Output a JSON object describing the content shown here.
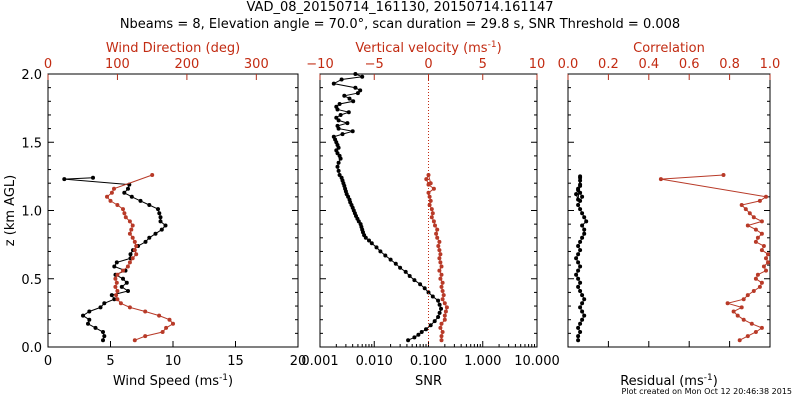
{
  "header": {
    "title_line1": "VAD_08_20150714_161130, 20150714.161147",
    "title_line2": "Nbeams = 8, Elevation angle = 70.0°, scan duration = 29.8 s, SNR Threshold = 0.008"
  },
  "footer": {
    "plot_created": "Plot created on Mon Oct 12 20:46:38 2015"
  },
  "colors": {
    "black_series": "#000000",
    "red_series": "#b83a28",
    "red_axis": "#c22b12"
  },
  "chart_data": [
    {
      "type": "line",
      "name": "wind",
      "ylabel": "z (km AGL)",
      "ylim": [
        0,
        2
      ],
      "yticks": [
        0,
        0.5,
        1,
        1.5,
        2
      ],
      "ytick_labels": [
        "0.0",
        "0.5",
        "1.0",
        "1.5",
        "2.0"
      ],
      "xlabel_main": "Wind Speed (ms",
      "xlabel_sup": "-1",
      "xlabel_end": ")",
      "xlim": [
        0,
        20
      ],
      "xticks": [
        0,
        5,
        10,
        15,
        20
      ],
      "xtick_labels": [
        "0",
        "5",
        "10",
        "15",
        "20"
      ],
      "top_label": "Wind Direction (deg)",
      "top_xlim": [
        0,
        360
      ],
      "top_xticks": [
        0,
        100,
        200,
        300
      ],
      "top_xtick_labels": [
        "0",
        "100",
        "200",
        "300"
      ],
      "series": [
        {
          "name": "Wind Speed",
          "color": "black",
          "axis": "bottom",
          "x": [
            4.4,
            4.5,
            4.4,
            3.8,
            3.2,
            3.3,
            2.8,
            3.3,
            4.2,
            4.5,
            5.3,
            5.1,
            6.4,
            5.9,
            6.3,
            6.0,
            5.4,
            6.2,
            5.3,
            5.5,
            6.6,
            6.6,
            6.8,
            7.2,
            7.8,
            8.1,
            8.6,
            9.1,
            9.4,
            9.0,
            9.0,
            8.9,
            8.8,
            8.1,
            7.4,
            6.7,
            6.1,
            6.4,
            6.5,
            1.3,
            3.6
          ],
          "y": [
            0.05,
            0.08,
            0.11,
            0.14,
            0.17,
            0.2,
            0.23,
            0.26,
            0.29,
            0.32,
            0.35,
            0.38,
            0.41,
            0.44,
            0.47,
            0.5,
            0.53,
            0.56,
            0.59,
            0.62,
            0.65,
            0.68,
            0.71,
            0.74,
            0.77,
            0.8,
            0.83,
            0.86,
            0.89,
            0.92,
            0.95,
            0.98,
            1.01,
            1.04,
            1.07,
            1.1,
            1.13,
            1.16,
            1.19,
            1.23,
            1.24
          ]
        },
        {
          "name": "Wind Direction",
          "color": "red",
          "axis": "top",
          "x": [
            125,
            140,
            165,
            170,
            180,
            175,
            160,
            140,
            118,
            105,
            100,
            98,
            100,
            97,
            99,
            97,
            100,
            108,
            115,
            118,
            122,
            127,
            125,
            127,
            125,
            122,
            118,
            120,
            122,
            118,
            112,
            110,
            108,
            100,
            90,
            85,
            92,
            95,
            150
          ],
          "y": [
            0.05,
            0.08,
            0.11,
            0.14,
            0.17,
            0.2,
            0.23,
            0.26,
            0.29,
            0.32,
            0.35,
            0.38,
            0.41,
            0.44,
            0.47,
            0.5,
            0.53,
            0.56,
            0.59,
            0.62,
            0.65,
            0.68,
            0.71,
            0.74,
            0.77,
            0.8,
            0.83,
            0.86,
            0.89,
            0.92,
            0.95,
            0.98,
            1.01,
            1.04,
            1.07,
            1.1,
            1.13,
            1.16,
            1.26
          ]
        }
      ]
    },
    {
      "type": "line",
      "name": "snr",
      "xscale": "log",
      "xlim": [
        0.001,
        10
      ],
      "ylim": [
        0,
        2
      ],
      "xlabel_main": "SNR",
      "xticks": [
        0.001,
        0.01,
        0.1,
        1,
        10
      ],
      "xtick_labels": [
        "0.001",
        "0.010",
        "0.100",
        "1.000",
        "10.000"
      ],
      "top_label_main": "Vertical velocity (ms",
      "top_label_sup": "-1",
      "top_label_end": ")",
      "top_xlim": [
        -10,
        10
      ],
      "top_xticks": [
        -10,
        -5,
        0,
        5,
        10
      ],
      "top_xtick_labels": [
        "−10",
        "−5",
        "0",
        "5",
        "10"
      ],
      "reference_line_top_x": 0,
      "series": [
        {
          "name": "SNR",
          "color": "black",
          "axis": "bottom",
          "x": [
            0.042,
            0.055,
            0.065,
            0.075,
            0.09,
            0.11,
            0.13,
            0.15,
            0.16,
            0.17,
            0.16,
            0.15,
            0.12,
            0.1,
            0.085,
            0.07,
            0.055,
            0.045,
            0.038,
            0.03,
            0.025,
            0.02,
            0.016,
            0.013,
            0.011,
            0.009,
            0.008,
            0.007,
            0.0065,
            0.0062,
            0.006,
            0.0058,
            0.0056,
            0.0052,
            0.0049,
            0.0046,
            0.0044,
            0.0042,
            0.004,
            0.0038,
            0.0036,
            0.0035,
            0.0033,
            0.0031,
            0.003,
            0.0029,
            0.0028,
            0.0027,
            0.0026,
            0.0025,
            0.0023,
            0.0022,
            0.0021,
            0.0022,
            0.0024,
            0.0023,
            0.0021,
            0.002,
            0.0022,
            0.0021,
            0.002,
            0.0019,
            0.0018,
            0.0026,
            0.004,
            0.0022,
            0.0021,
            0.0032,
            0.0022,
            0.002,
            0.0024,
            0.0034,
            0.0021,
            0.002,
            0.0023,
            0.0041,
            0.0035,
            0.0028,
            0.005,
            0.0055,
            0.0045,
            0.0018,
            0.0025,
            0.006,
            0.0045
          ],
          "y": [
            0.05,
            0.07,
            0.09,
            0.11,
            0.13,
            0.16,
            0.19,
            0.22,
            0.25,
            0.28,
            0.31,
            0.34,
            0.37,
            0.4,
            0.43,
            0.46,
            0.49,
            0.52,
            0.55,
            0.58,
            0.61,
            0.64,
            0.67,
            0.7,
            0.73,
            0.76,
            0.78,
            0.8,
            0.82,
            0.84,
            0.86,
            0.88,
            0.9,
            0.92,
            0.94,
            0.96,
            0.98,
            1.0,
            1.02,
            1.04,
            1.06,
            1.08,
            1.1,
            1.12,
            1.14,
            1.16,
            1.18,
            1.2,
            1.22,
            1.24,
            1.26,
            1.29,
            1.32,
            1.35,
            1.38,
            1.4,
            1.42,
            1.44,
            1.46,
            1.48,
            1.5,
            1.52,
            1.54,
            1.56,
            1.58,
            1.6,
            1.62,
            1.64,
            1.66,
            1.68,
            1.7,
            1.72,
            1.74,
            1.76,
            1.78,
            1.8,
            1.82,
            1.84,
            1.86,
            1.88,
            1.9,
            1.93,
            1.96,
            1.98,
            2.0
          ]
        },
        {
          "name": "Vertical velocity",
          "color": "red",
          "axis": "top",
          "x": [
            1.2,
            1.2,
            1.3,
            1.1,
            1.2,
            1.5,
            1.5,
            1.6,
            1.7,
            1.5,
            1.3,
            1.4,
            1.3,
            1.2,
            1.3,
            1.1,
            1.2,
            1.0,
            1.2,
            1.1,
            1.0,
            1.1,
            1.0,
            0.9,
            1.0,
            0.8,
            0.7,
            0.8,
            0.6,
            0.5,
            0.3,
            0.4,
            0.3,
            0.1,
            0.2,
            0.1,
            0.0,
            0.5,
            0.0,
            -0.2,
            0.0,
            0.2
          ],
          "y": [
            0.05,
            0.08,
            0.11,
            0.14,
            0.17,
            0.2,
            0.23,
            0.26,
            0.29,
            0.32,
            0.35,
            0.38,
            0.41,
            0.44,
            0.47,
            0.5,
            0.53,
            0.56,
            0.59,
            0.62,
            0.65,
            0.68,
            0.71,
            0.74,
            0.77,
            0.8,
            0.83,
            0.86,
            0.89,
            0.92,
            0.95,
            0.98,
            1.01,
            1.04,
            1.07,
            1.1,
            1.13,
            1.16,
            1.19,
            1.23,
            1.26,
            1.2
          ]
        }
      ]
    },
    {
      "type": "line",
      "name": "residual",
      "xlim": [
        0,
        10
      ],
      "ylim": [
        0,
        2
      ],
      "xlabel_main": "Residual (ms",
      "xlabel_sup": "-1",
      "xlabel_end": ")",
      "top_label": "Correlation",
      "top_xlim": [
        0,
        1
      ],
      "top_xticks": [
        0,
        0.2,
        0.4,
        0.6,
        0.8,
        1.0
      ],
      "top_xtick_labels": [
        "0.0",
        "0.2",
        "0.4",
        "0.6",
        "0.8",
        "1.0"
      ],
      "series": [
        {
          "name": "Residual",
          "color": "black",
          "axis": "bottom",
          "x": [
            0.5,
            0.5,
            0.6,
            0.5,
            0.6,
            0.7,
            0.8,
            0.7,
            0.6,
            0.7,
            0.8,
            0.7,
            0.6,
            0.5,
            0.6,
            0.5,
            0.4,
            0.5,
            0.6,
            0.5,
            0.4,
            0.5,
            0.6,
            0.5,
            0.6,
            0.7,
            0.8,
            0.8,
            0.7,
            0.9,
            0.8,
            0.7,
            0.6,
            0.5,
            0.6,
            0.7,
            0.6,
            0.5,
            0.6,
            0.6,
            0.6,
            0.5,
            0.4,
            0.5,
            0.6,
            0.6
          ],
          "y": [
            0.05,
            0.08,
            0.11,
            0.14,
            0.17,
            0.2,
            0.23,
            0.26,
            0.29,
            0.32,
            0.35,
            0.38,
            0.41,
            0.44,
            0.47,
            0.5,
            0.53,
            0.56,
            0.59,
            0.62,
            0.65,
            0.68,
            0.71,
            0.74,
            0.77,
            0.8,
            0.83,
            0.86,
            0.89,
            0.92,
            0.95,
            0.98,
            1.01,
            1.04,
            1.07,
            1.1,
            1.13,
            1.16,
            1.19,
            1.22,
            1.25,
            1.08,
            1.12,
            1.15,
            1.18,
            1.24
          ]
        },
        {
          "name": "Correlation",
          "color": "red",
          "axis": "top",
          "x": [
            0.85,
            0.89,
            0.93,
            0.96,
            0.91,
            0.87,
            0.84,
            0.82,
            0.86,
            0.79,
            0.87,
            0.89,
            0.92,
            0.95,
            0.96,
            0.93,
            0.94,
            0.98,
            0.97,
            0.99,
            0.98,
            0.99,
            0.96,
            0.97,
            0.93,
            0.94,
            0.96,
            0.93,
            0.89,
            0.96,
            0.92,
            0.9,
            0.88,
            0.86,
            0.95,
            0.98,
            0.46,
            0.77
          ],
          "y": [
            0.05,
            0.08,
            0.11,
            0.14,
            0.17,
            0.2,
            0.23,
            0.26,
            0.29,
            0.32,
            0.35,
            0.38,
            0.41,
            0.44,
            0.47,
            0.5,
            0.53,
            0.56,
            0.59,
            0.62,
            0.65,
            0.68,
            0.71,
            0.74,
            0.77,
            0.8,
            0.83,
            0.86,
            0.89,
            0.92,
            0.95,
            0.98,
            1.01,
            1.04,
            1.07,
            1.1,
            1.23,
            1.26
          ]
        }
      ]
    }
  ]
}
